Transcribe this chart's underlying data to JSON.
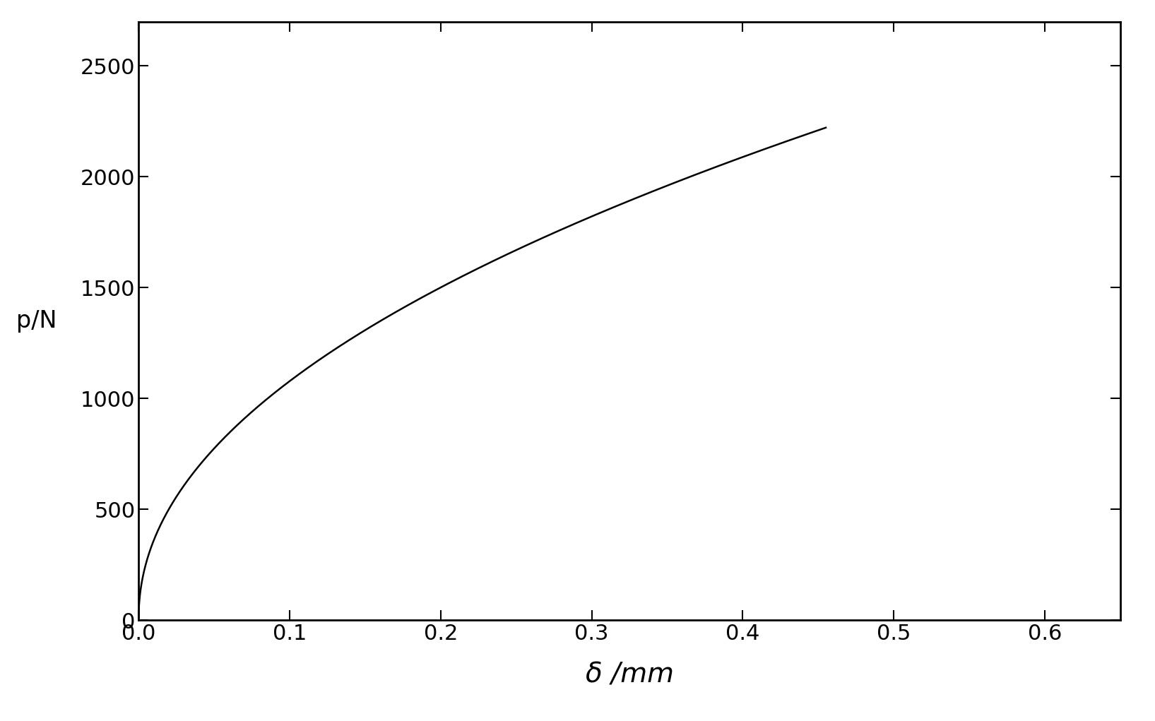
{
  "xlabel": "δ /mm",
  "ylabel": "p/N",
  "xlim": [
    0.0,
    0.65
  ],
  "ylim": [
    0,
    2700
  ],
  "xticks": [
    0.0,
    0.1,
    0.2,
    0.3,
    0.4,
    0.5,
    0.6
  ],
  "yticks": [
    0,
    500,
    1000,
    1500,
    2000,
    2500
  ],
  "line_color": "#000000",
  "line_width": 1.8,
  "background_color": "#ffffff",
  "curve_end_x": 0.455,
  "figsize": [
    16.35,
    10.21
  ],
  "dpi": 100,
  "ylabel_fontsize": 24,
  "xlabel_fontsize": 28,
  "tick_labelsize": 22
}
